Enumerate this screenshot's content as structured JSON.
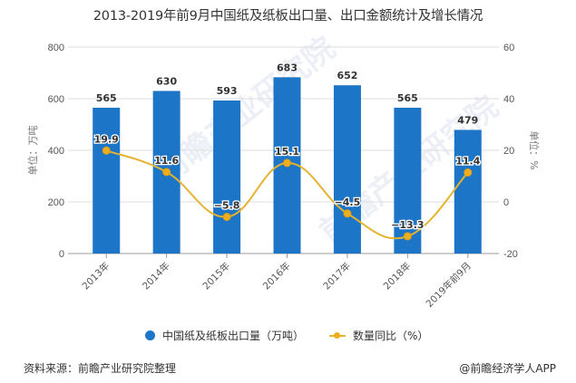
{
  "title": "2013-2019年前9月中国纸及纸板出口量、出口金额统计及增长情况",
  "chart_data": {
    "type": "bar",
    "title": "2013-2019年前9月中国纸及纸板出口量、出口金额统计及增长情况",
    "categories": [
      "2013年",
      "2014年",
      "2015年",
      "2016年",
      "2017年",
      "2018年",
      "2019年前9月"
    ],
    "series": [
      {
        "name": "中国纸及纸板出口量（万吨）",
        "type": "bar",
        "axis": "left",
        "color": "#1c75c6",
        "values": [
          565,
          630,
          593,
          683,
          652,
          565,
          479
        ]
      },
      {
        "name": "数量同比（%）",
        "type": "line",
        "axis": "right",
        "color": "#e5b32f",
        "values": [
          19.9,
          11.6,
          -5.8,
          15.1,
          -4.5,
          -13.3,
          11.4
        ]
      }
    ],
    "ylabel": "单位：万吨",
    "y2label": "单位：%",
    "ylim": [
      0,
      800
    ],
    "y2lim": [
      -20,
      60
    ],
    "yticks": [
      0,
      200,
      400,
      600,
      800
    ],
    "y2ticks": [
      -20,
      0,
      20,
      40,
      60
    ],
    "grid": true,
    "legend": "bottom"
  },
  "legend": {
    "bar_label": "中国纸及纸板出口量（万吨）",
    "line_label": "数量同比（%）"
  },
  "footer": {
    "source": "资料来源：前瞻产业研究院整理",
    "brand": "@前瞻经济学人APP"
  },
  "watermark": {
    "text": "前瞻产业研究院"
  }
}
